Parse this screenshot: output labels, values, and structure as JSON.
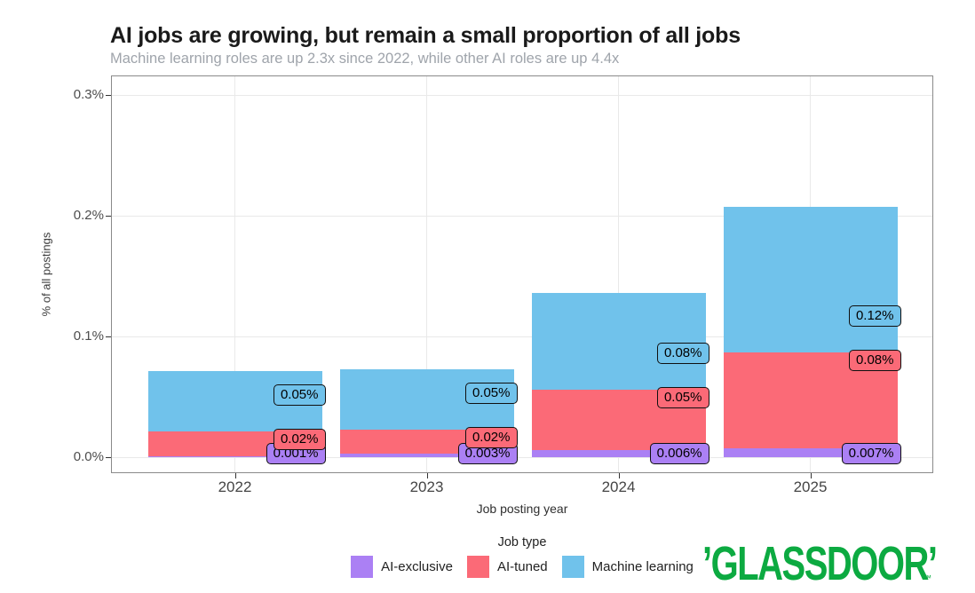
{
  "chart_data": {
    "type": "bar",
    "stacked": true,
    "title": "AI jobs are growing, but remain a small proportion of all jobs",
    "subtitle": "Machine learning roles are up 2.3x since 2022, while other AI roles are up 4.4x",
    "xlabel": "Job posting year",
    "ylabel": "% of all postings",
    "categories": [
      "2022",
      "2023",
      "2024",
      "2025"
    ],
    "series": [
      {
        "name": "AI-exclusive",
        "color": "#AB80F4",
        "values": [
          0.001,
          0.003,
          0.006,
          0.007
        ],
        "labels": [
          "0.001%",
          "0.003%",
          "0.006%",
          "0.007%"
        ]
      },
      {
        "name": "AI-tuned",
        "color": "#FB6A77",
        "values": [
          0.02,
          0.02,
          0.05,
          0.08
        ],
        "labels": [
          "0.02%",
          "0.02%",
          "0.05%",
          "0.08%"
        ]
      },
      {
        "name": "Machine learning",
        "color": "#70C2EB",
        "values": [
          0.05,
          0.05,
          0.08,
          0.12
        ],
        "labels": [
          "0.05%",
          "0.05%",
          "0.08%",
          "0.12%"
        ]
      }
    ],
    "stack_order_bottom_to_top": [
      "AI-exclusive",
      "AI-tuned",
      "Machine learning"
    ],
    "yticks": [
      {
        "label": "0.0%",
        "value": 0
      },
      {
        "label": "0.1%",
        "value": 0.1
      },
      {
        "label": "0.2%",
        "value": 0.2
      },
      {
        "label": "0.3%",
        "value": 0.3
      }
    ],
    "ylim": [
      0,
      0.316
    ],
    "grid": "major only; light gray horizontal lines at y ticks and vertical lines at category centers",
    "legend_title": "Job type",
    "legend_position": "bottom-center"
  },
  "branding": {
    "logo_open_quote": "’",
    "logo_text": "GLASSDOOR",
    "logo_close_quote": "’",
    "trademark": "™",
    "logo_color": "#0CAA41"
  },
  "colors": {
    "background": "#FFFFFF",
    "ai_exclusive": "#AB80F4",
    "ai_tuned": "#FB6A77",
    "machine_learning": "#70C2EB",
    "title_text": "#1A1A1A",
    "subtitle_text": "#9FA4AB",
    "axis_text": "#4D4D4D",
    "gridline": "#E9E9E9",
    "panel_border": "#8A8A8A",
    "value_label_border": "#101010"
  }
}
